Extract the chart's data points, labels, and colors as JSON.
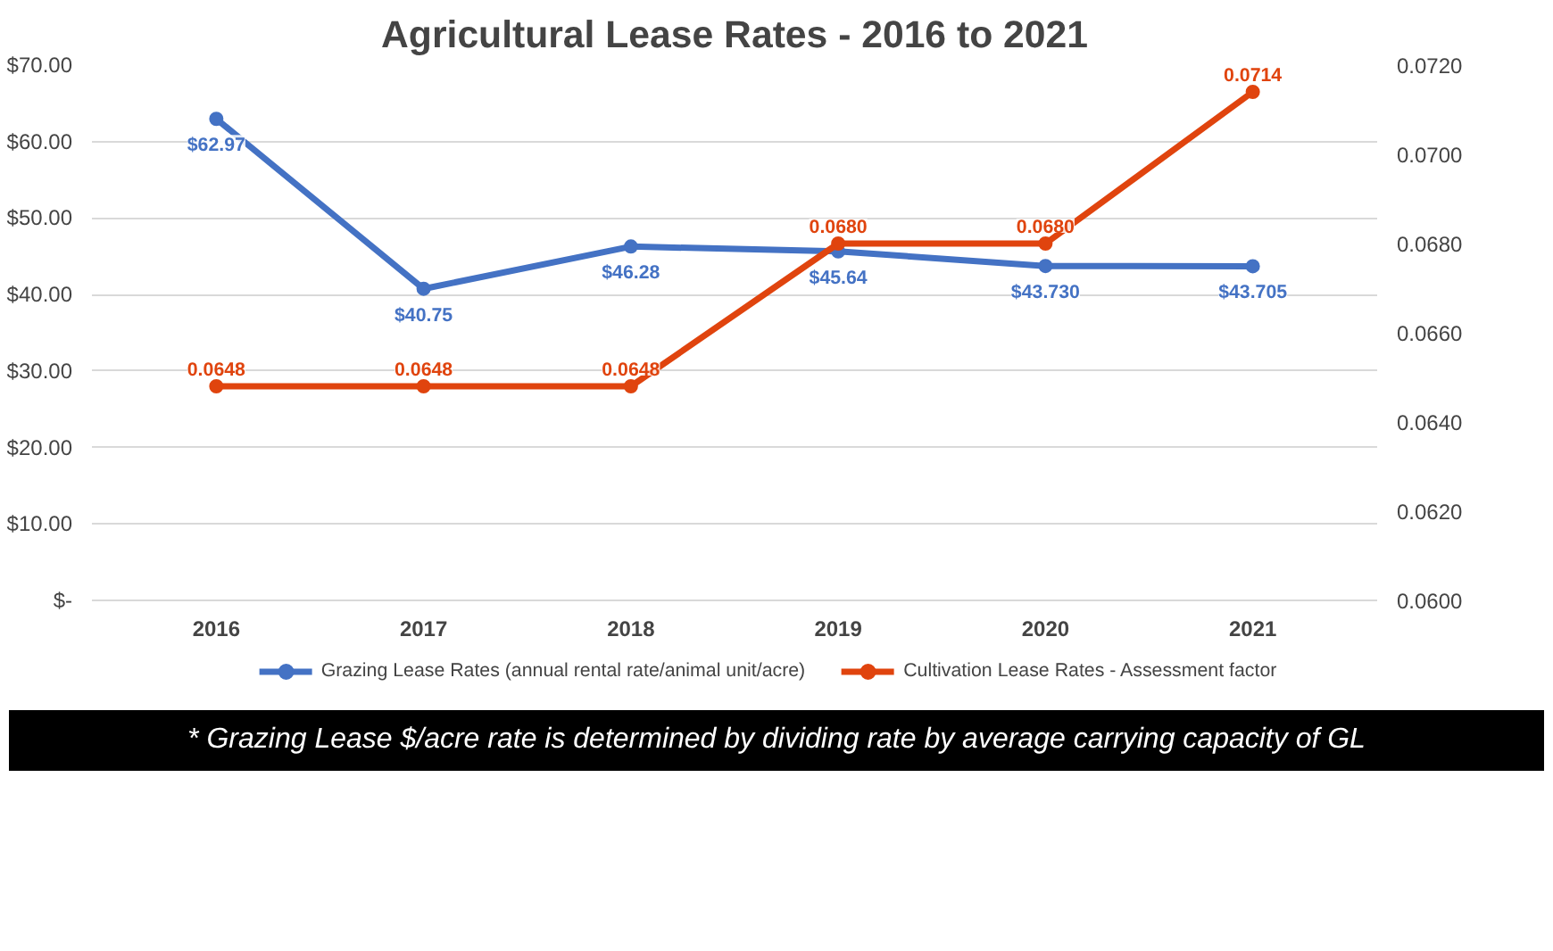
{
  "chart_data": {
    "type": "line",
    "title": "Agricultural Lease Rates - 2016 to 2021",
    "categories": [
      "2016",
      "2017",
      "2018",
      "2019",
      "2020",
      "2021"
    ],
    "series": [
      {
        "name": "Grazing Lease Rates (annual rental rate/animal unit/acre)",
        "color": "#4472c4",
        "values": [
          62.97,
          40.75,
          46.28,
          45.64,
          43.73,
          43.705
        ],
        "value_labels": [
          "$62.97",
          "$40.75",
          "$46.28",
          "$45.64",
          "$43.730",
          "$43.705"
        ]
      },
      {
        "name": "Cultivation Lease Rates - Assessment factor",
        "color": "#e0440e",
        "axis": "y2",
        "values": [
          0.0648,
          0.0648,
          0.0648,
          0.068,
          0.068,
          0.0714
        ],
        "value_labels": [
          "0.0648",
          "0.0648",
          "0.0648",
          "0.0680",
          "0.0680",
          "0.0714"
        ]
      }
    ],
    "ylim": [
      0,
      70
    ],
    "yticks": [
      {
        "value": 0,
        "label": "$-"
      },
      {
        "value": 10,
        "label": "$10.00"
      },
      {
        "value": 20,
        "label": "$20.00"
      },
      {
        "value": 30,
        "label": "$30.00"
      },
      {
        "value": 40,
        "label": "$40.00"
      },
      {
        "value": 50,
        "label": "$50.00"
      },
      {
        "value": 60,
        "label": "$60.00"
      },
      {
        "value": 70,
        "label": "$70.00"
      }
    ],
    "y2lim": [
      0.06,
      0.072
    ],
    "y2ticks": [
      {
        "value": 0.06,
        "label": "0.0600"
      },
      {
        "value": 0.062,
        "label": "0.0620"
      },
      {
        "value": 0.064,
        "label": "0.0640"
      },
      {
        "value": 0.066,
        "label": "0.0660"
      },
      {
        "value": 0.068,
        "label": "0.0680"
      },
      {
        "value": 0.07,
        "label": "0.0700"
      },
      {
        "value": 0.072,
        "label": "0.0720"
      }
    ],
    "grid": "y",
    "legend": "bottom",
    "marker": "circle",
    "line_style": "solid",
    "annotations": [
      "* Grazing Lease $/acre rate is determined by dividing rate by average carrying capacity of GL"
    ]
  }
}
